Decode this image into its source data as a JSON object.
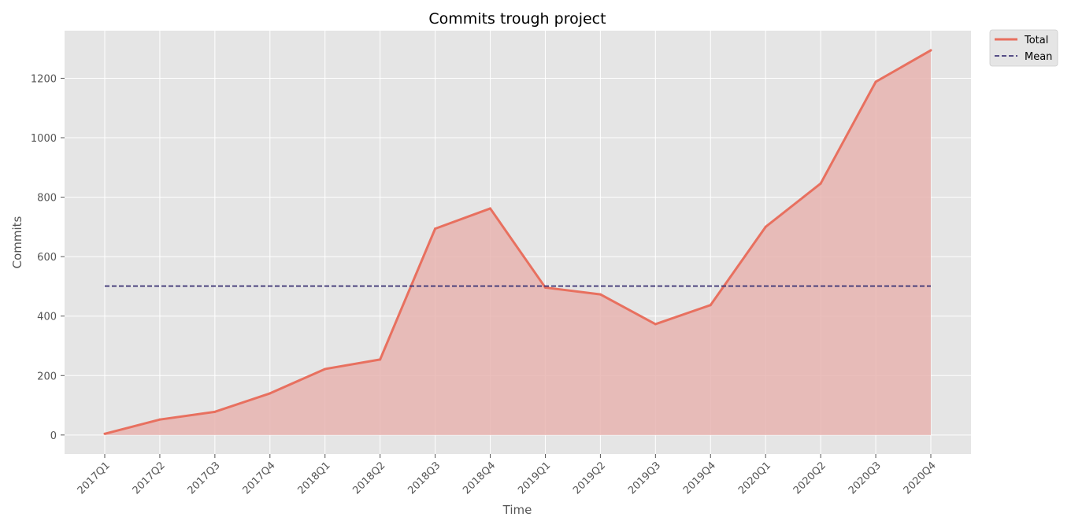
{
  "chart_data": {
    "type": "area",
    "title": "Commits trough project",
    "xlabel": "Time",
    "ylabel": "Commits",
    "categories": [
      "2017Q1",
      "2017Q2",
      "2017Q3",
      "2017Q4",
      "2018Q1",
      "2018Q2",
      "2018Q3",
      "2018Q4",
      "2019Q1",
      "2019Q2",
      "2019Q3",
      "2019Q4",
      "2020Q1",
      "2020Q2",
      "2020Q3",
      "2020Q4"
    ],
    "series": [
      {
        "name": "Total",
        "values": [
          4,
          52,
          78,
          140,
          222,
          254,
          694,
          762,
          496,
          473,
          373,
          437,
          700,
          846,
          1188,
          1294
        ]
      },
      {
        "name": "Mean",
        "values": [
          501,
          501,
          501,
          501,
          501,
          501,
          501,
          501,
          501,
          501,
          501,
          501,
          501,
          501,
          501,
          501
        ]
      }
    ],
    "yticks": [
      0,
      200,
      400,
      600,
      800,
      1000,
      1200
    ],
    "ylim": [
      -64,
      1360
    ],
    "grid": true,
    "legend_position": "outside-top-right",
    "colors": {
      "total": "#e8705f",
      "fill": "#e8b4b0",
      "mean": "#413978",
      "plot_background": "#e5e5e5",
      "grid": "#ffffff"
    }
  }
}
